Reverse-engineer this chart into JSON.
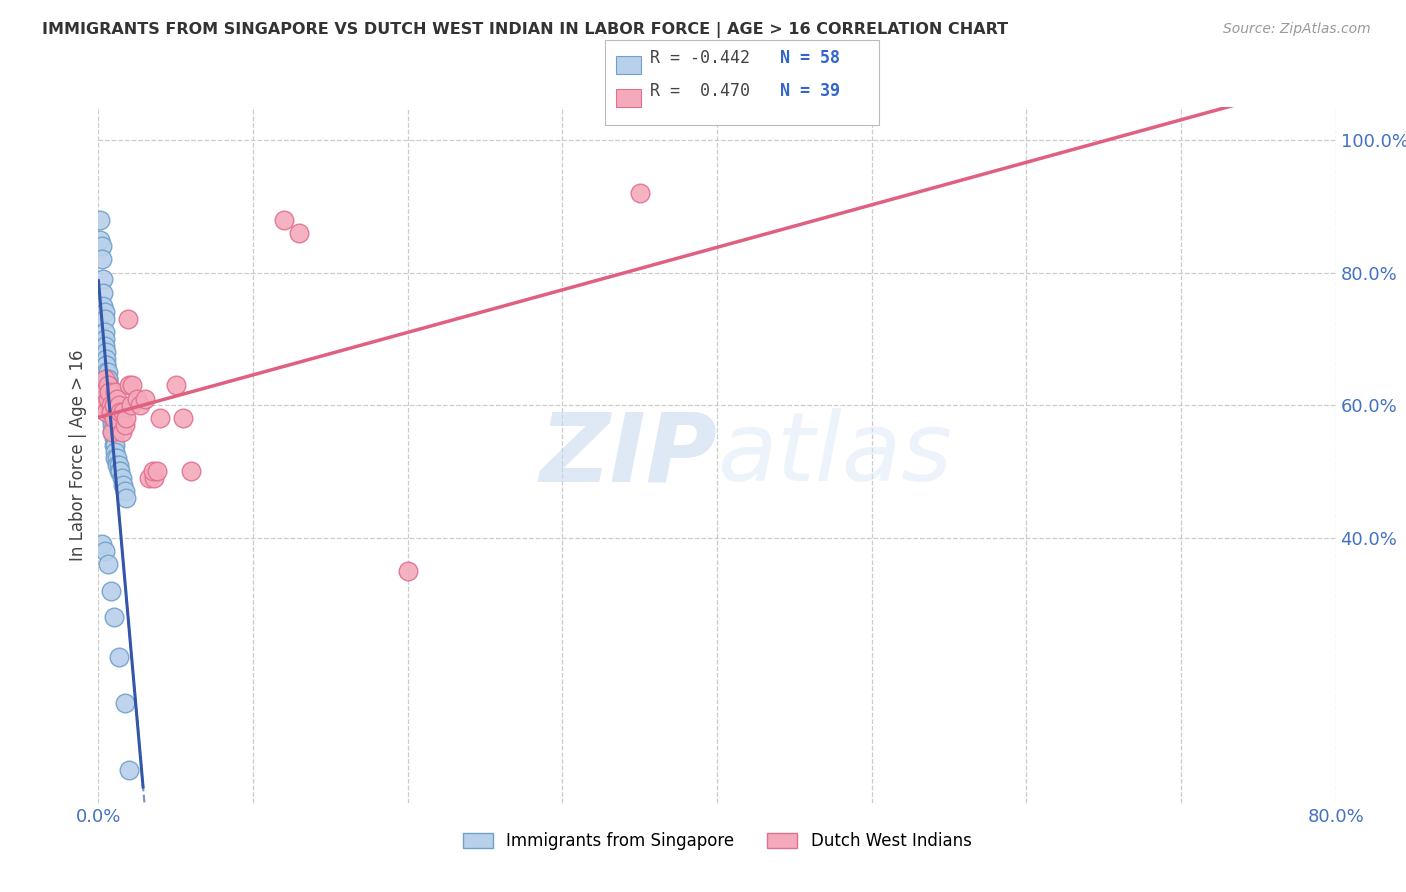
{
  "title": "IMMIGRANTS FROM SINGAPORE VS DUTCH WEST INDIAN IN LABOR FORCE | AGE > 16 CORRELATION CHART",
  "source": "Source: ZipAtlas.com",
  "ylabel_left": "In Labor Force | Age > 16",
  "x_min": 0.0,
  "x_max": 0.8,
  "y_min": 0.0,
  "y_max": 1.05,
  "right_yticks": [
    0.4,
    0.6,
    0.8,
    1.0
  ],
  "right_yticklabels": [
    "40.0%",
    "60.0%",
    "80.0%",
    "100.0%"
  ],
  "grid_color": "#cccccc",
  "background_color": "#ffffff",
  "singapore_color": "#b8d0ea",
  "singapore_edge_color": "#6fa0cc",
  "dutch_color": "#f4aabb",
  "dutch_edge_color": "#e07090",
  "singapore_R": -0.442,
  "singapore_N": 58,
  "dutch_R": 0.47,
  "dutch_N": 39,
  "singapore_line_color": "#3355aa",
  "dutch_line_color": "#e06080",
  "legend_label_singapore": "Immigrants from Singapore",
  "legend_label_dutch": "Dutch West Indians",
  "title_color": "#333333",
  "source_color": "#999999",
  "axis_label_color": "#4472c4",
  "watermark_zip_color": "#c8ddf0",
  "watermark_atlas_color": "#d8e8f4",
  "singapore_x": [
    0.001,
    0.001,
    0.002,
    0.002,
    0.003,
    0.003,
    0.003,
    0.004,
    0.004,
    0.004,
    0.004,
    0.004,
    0.005,
    0.005,
    0.005,
    0.005,
    0.005,
    0.006,
    0.006,
    0.006,
    0.006,
    0.006,
    0.007,
    0.007,
    0.007,
    0.007,
    0.008,
    0.008,
    0.008,
    0.008,
    0.008,
    0.009,
    0.009,
    0.009,
    0.01,
    0.01,
    0.01,
    0.01,
    0.011,
    0.011,
    0.011,
    0.012,
    0.012,
    0.013,
    0.013,
    0.014,
    0.015,
    0.016,
    0.017,
    0.018,
    0.002,
    0.004,
    0.006,
    0.008,
    0.01,
    0.013,
    0.017,
    0.02
  ],
  "singapore_y": [
    0.88,
    0.85,
    0.84,
    0.82,
    0.79,
    0.77,
    0.75,
    0.74,
    0.73,
    0.71,
    0.7,
    0.69,
    0.68,
    0.67,
    0.66,
    0.66,
    0.65,
    0.65,
    0.64,
    0.64,
    0.63,
    0.62,
    0.63,
    0.62,
    0.61,
    0.6,
    0.61,
    0.6,
    0.59,
    0.59,
    0.58,
    0.58,
    0.57,
    0.56,
    0.57,
    0.56,
    0.55,
    0.54,
    0.54,
    0.53,
    0.52,
    0.52,
    0.51,
    0.51,
    0.5,
    0.5,
    0.49,
    0.48,
    0.47,
    0.46,
    0.39,
    0.38,
    0.36,
    0.32,
    0.28,
    0.22,
    0.15,
    0.05
  ],
  "dutch_x": [
    0.002,
    0.003,
    0.004,
    0.005,
    0.006,
    0.006,
    0.007,
    0.008,
    0.008,
    0.009,
    0.01,
    0.01,
    0.011,
    0.012,
    0.013,
    0.014,
    0.015,
    0.016,
    0.017,
    0.018,
    0.019,
    0.02,
    0.021,
    0.022,
    0.025,
    0.027,
    0.03,
    0.033,
    0.036,
    0.04,
    0.05,
    0.055,
    0.06,
    0.12,
    0.13,
    0.035,
    0.038,
    0.2,
    0.35
  ],
  "dutch_y": [
    0.62,
    0.6,
    0.64,
    0.59,
    0.63,
    0.61,
    0.62,
    0.6,
    0.59,
    0.56,
    0.6,
    0.58,
    0.62,
    0.61,
    0.6,
    0.59,
    0.56,
    0.59,
    0.57,
    0.58,
    0.73,
    0.63,
    0.6,
    0.63,
    0.61,
    0.6,
    0.61,
    0.49,
    0.49,
    0.58,
    0.63,
    0.58,
    0.5,
    0.88,
    0.86,
    0.5,
    0.5,
    0.35,
    0.92
  ]
}
